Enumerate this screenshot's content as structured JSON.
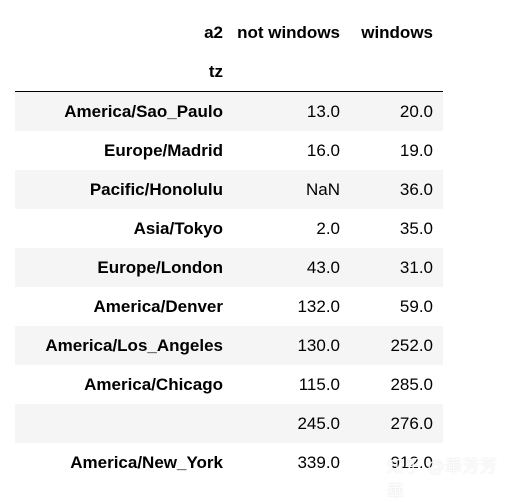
{
  "header": {
    "columns_name": "a2",
    "col1": "not windows",
    "col2": "windows",
    "index_name": "tz"
  },
  "rows": [
    {
      "tz": "America/Sao_Paulo",
      "not_windows": "13.0",
      "windows": "20.0"
    },
    {
      "tz": "Europe/Madrid",
      "not_windows": "16.0",
      "windows": "19.0"
    },
    {
      "tz": "Pacific/Honolulu",
      "not_windows": "NaN",
      "windows": "36.0"
    },
    {
      "tz": "Asia/Tokyo",
      "not_windows": "2.0",
      "windows": "35.0"
    },
    {
      "tz": "Europe/London",
      "not_windows": "43.0",
      "windows": "31.0"
    },
    {
      "tz": "America/Denver",
      "not_windows": "132.0",
      "windows": "59.0"
    },
    {
      "tz": "America/Los_Angeles",
      "not_windows": "130.0",
      "windows": "252.0"
    },
    {
      "tz": "America/Chicago",
      "not_windows": "115.0",
      "windows": "285.0"
    },
    {
      "tz": "",
      "not_windows": "245.0",
      "windows": "276.0"
    },
    {
      "tz": "America/New_York",
      "not_windows": "339.0",
      "windows": "912.0"
    }
  ],
  "watermark": "知乎 @華芳芳華"
}
